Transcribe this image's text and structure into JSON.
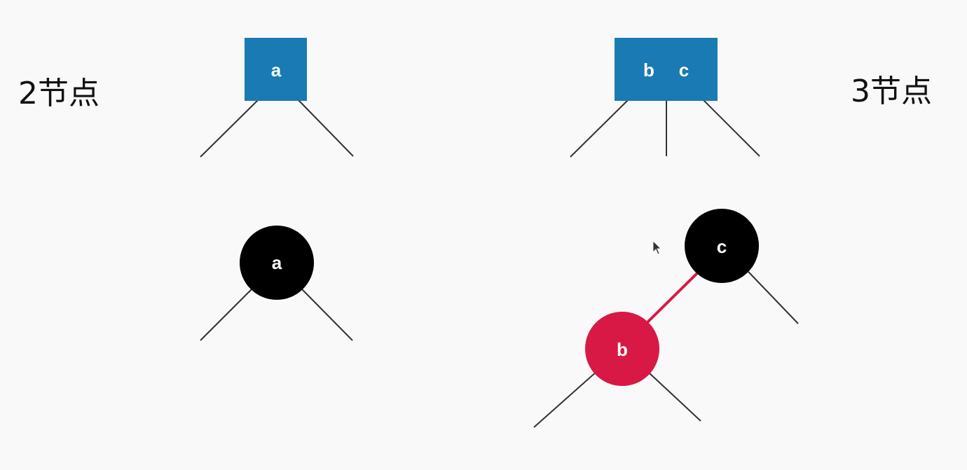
{
  "labels": {
    "two_node": "2节点",
    "three_node": "3节点"
  },
  "two_node_box": {
    "key": "a"
  },
  "three_node_box": {
    "key_left": "b",
    "key_right": "c"
  },
  "two_node_rb": {
    "key": "a",
    "color": "black"
  },
  "three_node_rb": {
    "parent": {
      "key": "c",
      "color": "black"
    },
    "child": {
      "key": "b",
      "color": "red"
    },
    "link_color": "red"
  },
  "colors": {
    "box_fill": "#1a7ab3",
    "black_node": "#000000",
    "red_node": "#d81845",
    "line": "#333333"
  }
}
